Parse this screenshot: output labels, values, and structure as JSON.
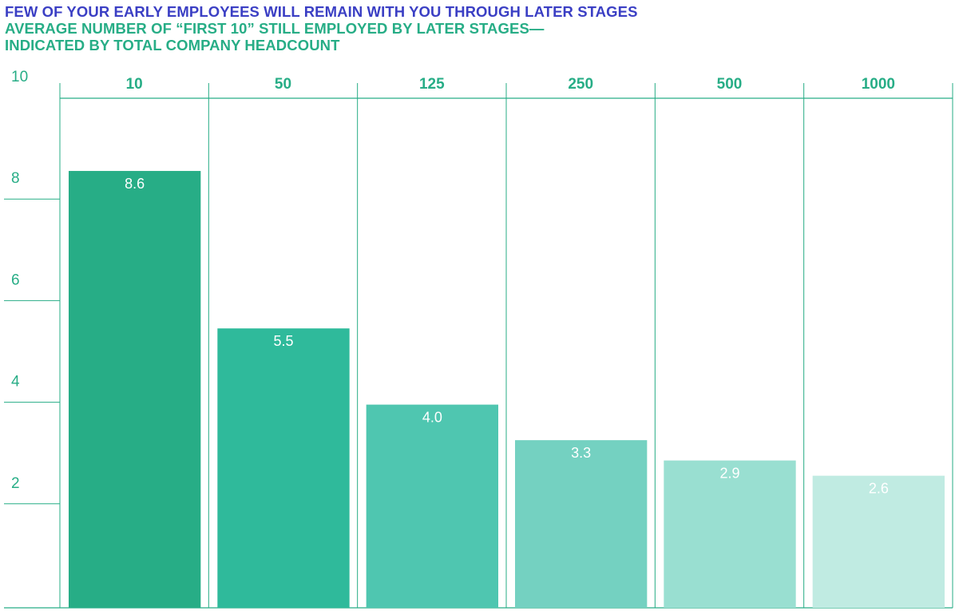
{
  "title": "FEW OF YOUR EARLY EMPLOYEES WILL REMAIN WITH YOU THROUGH LATER STAGES",
  "subtitle_line1": "AVERAGE NUMBER OF “FIRST 10” STILL EMPLOYED BY LATER STAGES—",
  "subtitle_line2": "INDICATED BY TOTAL COMPANY HEADCOUNT",
  "colors": {
    "title": "#3b3fc4",
    "accent": "#27ad86",
    "bars": [
      "#27ad86",
      "#2fba9b",
      "#4fc6b0",
      "#74d1c1",
      "#99dfd1",
      "#c0ebe2"
    ]
  },
  "chart_data": {
    "type": "bar",
    "categories": [
      "10",
      "50",
      "125",
      "250",
      "500",
      "1000"
    ],
    "values": [
      8.6,
      5.5,
      4.0,
      3.3,
      2.9,
      2.6
    ],
    "data_labels": [
      "8.6",
      "5.5",
      "4.0",
      "3.3",
      "2.9",
      "2.6"
    ],
    "y_ticks": [
      "10",
      "8",
      "6",
      "4",
      "2"
    ],
    "y_tick_values": [
      10,
      8,
      6,
      4,
      2
    ],
    "ylim": [
      0,
      10
    ],
    "category_axis_position": "top",
    "grid": true
  }
}
